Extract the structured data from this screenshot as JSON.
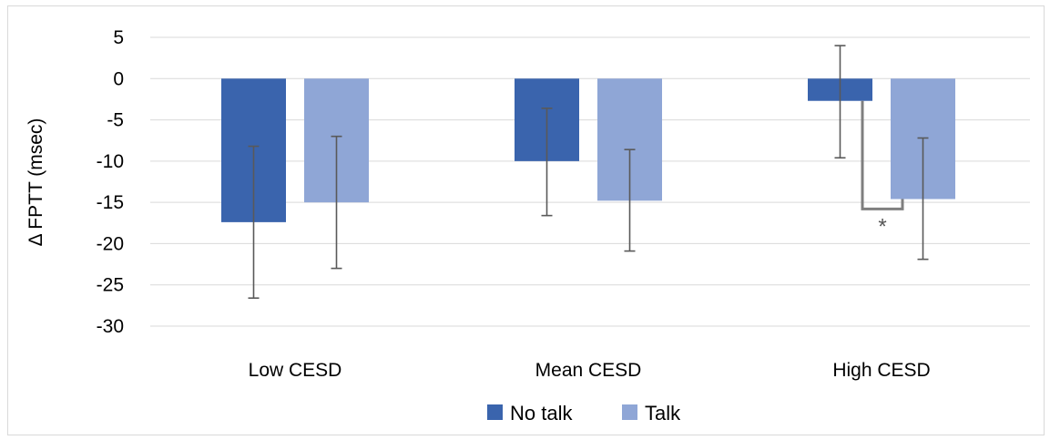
{
  "chart_data": {
    "type": "bar",
    "title": "",
    "xlabel": "",
    "ylabel": "Δ FPTT (msec)",
    "ylim": [
      -30,
      5
    ],
    "yticks": [
      5,
      0,
      -5,
      -10,
      -15,
      -20,
      -25,
      -30
    ],
    "grid": true,
    "legend_position": "bottom",
    "categories": [
      "Low CESD",
      "Mean CESD",
      "High CESD"
    ],
    "series": [
      {
        "name": "No talk",
        "color": "#3a64ad",
        "values": [
          -17.4,
          -10.0,
          -2.7
        ],
        "error_low": [
          -26.6,
          -16.6,
          -9.6
        ],
        "error_high": [
          -8.2,
          -3.6,
          4.0
        ]
      },
      {
        "name": "Talk",
        "color": "#8fa6d6",
        "values": [
          -15.0,
          -14.8,
          -14.6
        ],
        "error_low": [
          -23.0,
          -20.9,
          -21.9
        ],
        "error_high": [
          -7.0,
          -8.6,
          -7.2
        ]
      }
    ],
    "annotations": [
      {
        "text": "*",
        "category": "High CESD",
        "bracket_y": -15.8
      }
    ]
  }
}
